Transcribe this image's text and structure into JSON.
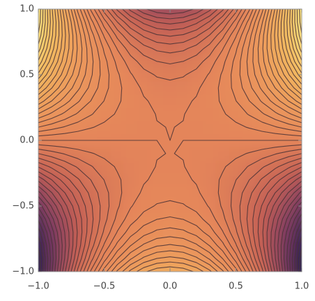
{
  "chart_data": {
    "type": "contour",
    "x": [
      -1,
      -0.9,
      -0.8,
      -0.7,
      -0.6,
      -0.5,
      -0.4,
      -0.3,
      -0.2,
      -0.1,
      0,
      0.1,
      0.2,
      0.3,
      0.4,
      0.5,
      0.6,
      0.7,
      0.8,
      0.9,
      1
    ],
    "y": [
      -1,
      -0.9,
      -0.8,
      -0.7,
      -0.6,
      -0.5,
      -0.4,
      -0.3,
      -0.2,
      -0.1,
      0,
      0.1,
      0.2,
      0.3,
      0.4,
      0.5,
      0.6,
      0.7,
      0.8,
      0.9,
      1
    ],
    "z": [
      [
        -2,
        -1.43,
        -0.92,
        -0.47,
        -0.08,
        0.25,
        0.52,
        0.73,
        0.88,
        0.97,
        1,
        0.97,
        0.88,
        0.73,
        0.52,
        0.25,
        -0.08,
        -0.47,
        -0.92,
        -1.43,
        -2
      ],
      [
        -1.971,
        -1.458,
        -0.999,
        -0.594,
        -0.243,
        0.054,
        0.297,
        0.486,
        0.621,
        0.702,
        0.729,
        0.702,
        0.621,
        0.486,
        0.297,
        0.054,
        -0.243,
        -0.594,
        -0.999,
        -1.458,
        -1.971
      ],
      [
        -1.888,
        -1.432,
        -1.024,
        -0.664,
        -0.352,
        -0.088,
        0.128,
        0.296,
        0.416,
        0.488,
        0.512,
        0.488,
        0.416,
        0.296,
        0.128,
        -0.088,
        -0.352,
        -0.664,
        -1.024,
        -1.432,
        -1.888
      ],
      [
        -1.757,
        -1.358,
        -1.001,
        -0.686,
        -0.413,
        -0.182,
        0.007,
        0.154,
        0.259,
        0.322,
        0.343,
        0.322,
        0.259,
        0.154,
        0.007,
        -0.182,
        -0.413,
        -0.686,
        -1.001,
        -1.358,
        -1.757
      ],
      [
        -1.584,
        -1.242,
        -0.936,
        -0.666,
        -0.432,
        -0.234,
        -0.072,
        0.054,
        0.144,
        0.198,
        0.216,
        0.198,
        0.144,
        0.054,
        -0.072,
        -0.234,
        -0.432,
        -0.666,
        -0.936,
        -1.242,
        -1.584
      ],
      [
        -1.375,
        -1.09,
        -0.835,
        -0.61,
        -0.415,
        -0.25,
        -0.115,
        -0.01,
        0.065,
        0.11,
        0.125,
        0.11,
        0.065,
        -0.01,
        -0.115,
        -0.25,
        -0.415,
        -0.61,
        -0.835,
        -1.09,
        -1.375
      ],
      [
        -1.136,
        -0.908,
        -0.704,
        -0.524,
        -0.368,
        -0.236,
        -0.128,
        -0.044,
        0.016,
        0.052,
        0.064,
        0.052,
        0.016,
        -0.044,
        -0.128,
        -0.236,
        -0.368,
        -0.524,
        -0.704,
        -0.908,
        -1.136
      ],
      [
        -0.873,
        -0.702,
        -0.549,
        -0.414,
        -0.297,
        -0.198,
        -0.117,
        -0.054,
        -0.009,
        0.018,
        0.027,
        0.018,
        -0.009,
        -0.054,
        -0.117,
        -0.198,
        -0.297,
        -0.414,
        -0.549,
        -0.702,
        -0.873
      ],
      [
        -0.592,
        -0.478,
        -0.376,
        -0.286,
        -0.208,
        -0.142,
        -0.088,
        -0.046,
        -0.016,
        0.002,
        0.008,
        0.002,
        -0.016,
        -0.046,
        -0.088,
        -0.142,
        -0.208,
        -0.286,
        -0.376,
        -0.478,
        -0.592
      ],
      [
        -0.299,
        -0.242,
        -0.191,
        -0.146,
        -0.107,
        -0.074,
        -0.047,
        -0.026,
        -0.011,
        -0.002,
        0.001,
        -0.002,
        -0.011,
        -0.026,
        -0.047,
        -0.074,
        -0.107,
        -0.146,
        -0.191,
        -0.242,
        -0.299
      ],
      [
        0,
        0,
        0,
        0,
        0,
        0,
        0,
        0,
        0,
        0,
        0,
        0,
        0,
        0,
        0,
        0,
        0,
        0,
        0,
        0,
        0
      ],
      [
        0.299,
        0.242,
        0.191,
        0.146,
        0.107,
        0.074,
        0.047,
        0.026,
        0.011,
        0.002,
        -0.001,
        0.002,
        0.011,
        0.026,
        0.047,
        0.074,
        0.107,
        0.146,
        0.191,
        0.242,
        0.299
      ],
      [
        0.592,
        0.478,
        0.376,
        0.286,
        0.208,
        0.142,
        0.088,
        0.046,
        0.016,
        -0.002,
        -0.008,
        -0.002,
        0.016,
        0.046,
        0.088,
        0.142,
        0.208,
        0.286,
        0.376,
        0.478,
        0.592
      ],
      [
        0.873,
        0.702,
        0.549,
        0.414,
        0.297,
        0.198,
        0.117,
        0.054,
        0.009,
        -0.018,
        -0.027,
        -0.018,
        0.009,
        0.054,
        0.117,
        0.198,
        0.297,
        0.414,
        0.549,
        0.702,
        0.873
      ],
      [
        1.136,
        0.908,
        0.704,
        0.524,
        0.368,
        0.236,
        0.128,
        0.044,
        -0.016,
        -0.052,
        -0.064,
        -0.052,
        -0.016,
        0.044,
        0.128,
        0.236,
        0.368,
        0.524,
        0.704,
        0.908,
        1.136
      ],
      [
        1.375,
        1.09,
        0.835,
        0.61,
        0.415,
        0.25,
        0.115,
        0.01,
        -0.065,
        -0.11,
        -0.125,
        -0.11,
        -0.065,
        0.01,
        0.115,
        0.25,
        0.415,
        0.61,
        0.835,
        1.09,
        1.375
      ],
      [
        1.584,
        1.242,
        0.936,
        0.666,
        0.432,
        0.234,
        0.072,
        -0.054,
        -0.144,
        -0.198,
        -0.216,
        -0.198,
        -0.144,
        -0.054,
        0.072,
        0.234,
        0.432,
        0.666,
        0.936,
        1.242,
        1.584
      ],
      [
        1.757,
        1.358,
        1.001,
        0.686,
        0.413,
        0.182,
        -0.007,
        -0.154,
        -0.259,
        -0.322,
        -0.343,
        -0.322,
        -0.259,
        -0.154,
        -0.007,
        0.182,
        0.413,
        0.686,
        1.001,
        1.358,
        1.757
      ],
      [
        1.888,
        1.432,
        1.024,
        0.664,
        0.352,
        0.088,
        -0.128,
        -0.296,
        -0.416,
        -0.488,
        -0.512,
        -0.488,
        -0.416,
        -0.296,
        -0.128,
        0.088,
        0.352,
        0.664,
        1.024,
        1.432,
        1.888
      ],
      [
        1.971,
        1.458,
        0.999,
        0.594,
        0.243,
        -0.054,
        -0.297,
        -0.486,
        -0.621,
        -0.702,
        -0.729,
        -0.702,
        -0.621,
        -0.486,
        -0.297,
        -0.054,
        0.243,
        0.594,
        0.999,
        1.458,
        1.971
      ],
      [
        2,
        1.43,
        0.92,
        0.47,
        0.08,
        -0.25,
        -0.52,
        -0.73,
        -0.88,
        -0.97,
        -1,
        -0.97,
        -0.88,
        -0.73,
        -0.52,
        -0.25,
        0.08,
        0.47,
        0.92,
        1.43,
        2
      ]
    ],
    "levels": [
      -1.9,
      -1.8,
      -1.7,
      -1.6,
      -1.5,
      -1.4,
      -1.3,
      -1.2,
      -1.1,
      -1,
      -0.9,
      -0.8,
      -0.7,
      -0.6,
      -0.5,
      -0.4,
      -0.3,
      -0.2,
      -0.1,
      0,
      0.1,
      0.2,
      0.3,
      0.4,
      0.5,
      0.6,
      0.7,
      0.8,
      0.9,
      1,
      1.1,
      1.2,
      1.3,
      1.4,
      1.5,
      1.6,
      1.7,
      1.8,
      1.9
    ],
    "colors": [
      "#27204f",
      "#7a3a62",
      "#c35f55",
      "#e4855a",
      "#ec9a5b",
      "#f2b85f",
      "#f6e07d"
    ],
    "line_color": "#4a3236",
    "xlim": [
      -1,
      1
    ],
    "ylim": [
      -1,
      1
    ],
    "xticks": [
      {
        "value": -1,
        "label": "−1.0"
      },
      {
        "value": -0.5,
        "label": "−0.5"
      },
      {
        "value": 0,
        "label": "0.0"
      },
      {
        "value": 0.5,
        "label": "0.5"
      },
      {
        "value": 1,
        "label": "1.0"
      }
    ],
    "yticks": [
      {
        "value": -1,
        "label": "−1.0"
      },
      {
        "value": -0.5,
        "label": "−0.5"
      },
      {
        "value": 0,
        "label": "0.0"
      },
      {
        "value": 0.5,
        "label": "0.5"
      },
      {
        "value": 1,
        "label": "1.0"
      }
    ]
  }
}
